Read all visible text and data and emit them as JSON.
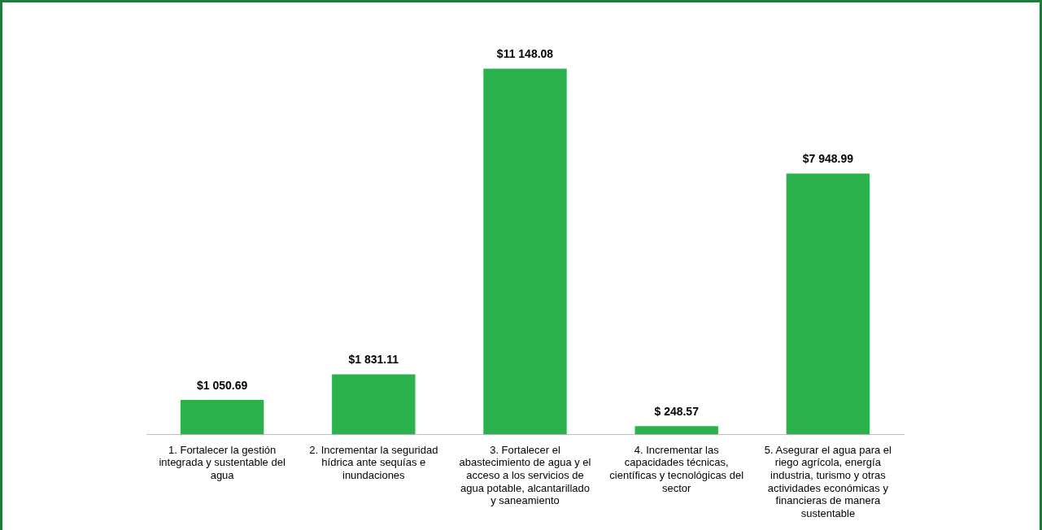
{
  "chart_data": {
    "type": "bar",
    "categories": [
      "1. Fortalecer la gestión integrada y sustentable del agua",
      "2. Incrementar la seguridad hídrica ante sequías e inundaciones",
      "3. Fortalecer el abastecimiento de agua y el acceso a los servicios de agua potable, alcantarillado y saneamiento",
      "4. Incrementar las capacidades técnicas, científicas y tecnológicas del sector",
      "5. Asegurar el agua para el riego agrícola, energía industria, turismo y otras actividades económicas y financieras de manera sustentable"
    ],
    "values": [
      1050.69,
      1831.11,
      11148.08,
      248.57,
      7948.99
    ],
    "value_labels": [
      "$1 050.69",
      "$1 831.11",
      "$11 148.08",
      "$ 248.57",
      "$7 948.99"
    ],
    "color": "#2bb24c",
    "tick_labels": "x",
    "grid": false,
    "legend": false
  }
}
